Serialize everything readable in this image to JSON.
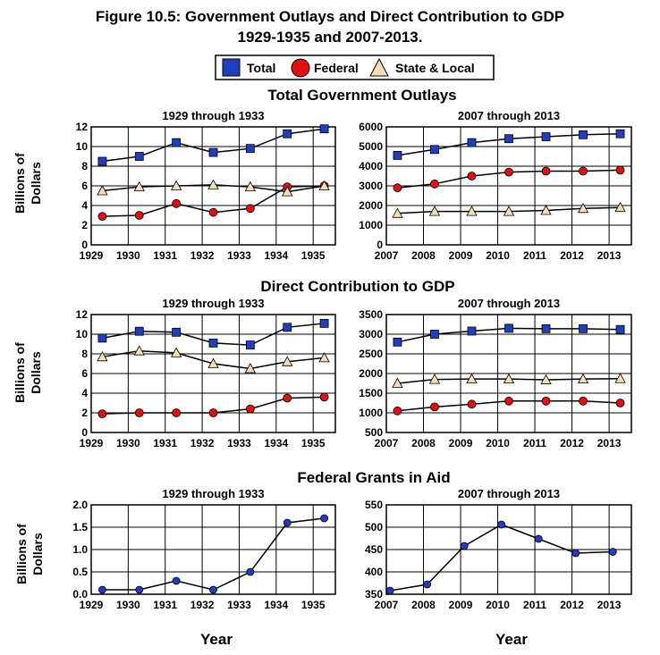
{
  "figure": {
    "title_line1": "Figure 10.5: Government Outlays and Direct Contribution to GDP",
    "title_line2": "1929-1935 and 2007-2013."
  },
  "legend": {
    "items": [
      {
        "label": "Total",
        "marker": "square",
        "color": "#1f3fbf"
      },
      {
        "label": "Federal",
        "marker": "circle",
        "color": "#e01010"
      },
      {
        "label": "State & Local",
        "marker": "triangle",
        "color": "#f5deb3"
      }
    ]
  },
  "sections": {
    "outlays": "Total Government Outlays",
    "gdp": "Direct Contribution to GDP",
    "grants": "Federal Grants in Aid"
  },
  "axis_labels": {
    "y_line1": "Billions of",
    "y_line2": "Dollars",
    "x": "Year"
  },
  "colors": {
    "total": "#1f3fbf",
    "federal": "#e01010",
    "state_local": "#f5deb3",
    "grants": "#1f3fbf"
  },
  "chart_data": [
    {
      "type": "line",
      "title": "1929 through 1933",
      "section": "Total Government Outlays",
      "x": [
        1929,
        1930,
        1931,
        1932,
        1933,
        1934,
        1935
      ],
      "xticks": [
        "1929",
        "1930",
        "1931",
        "1932",
        "1933",
        "1934",
        "1935"
      ],
      "xlim": [
        1929,
        1935.6
      ],
      "ylim": [
        0,
        12
      ],
      "yticks": [
        "0",
        "2",
        "4",
        "6",
        "8",
        "10",
        "12"
      ],
      "ylabel": "Billions of Dollars",
      "grid": true,
      "series": [
        {
          "name": "Total",
          "marker": "square",
          "x": [
            1929.3,
            1930.3,
            1931.3,
            1932.3,
            1933.3,
            1934.3,
            1935.3
          ],
          "values": [
            8.5,
            9.0,
            10.4,
            9.4,
            9.8,
            11.3,
            11.8
          ]
        },
        {
          "name": "Federal",
          "marker": "circle",
          "x": [
            1929.3,
            1930.3,
            1931.3,
            1932.3,
            1933.3,
            1934.3,
            1935.3
          ],
          "values": [
            2.9,
            3.0,
            4.2,
            3.3,
            3.7,
            5.9,
            6.0
          ]
        },
        {
          "name": "State & Local",
          "marker": "triangle",
          "x": [
            1929.3,
            1930.3,
            1931.3,
            1932.3,
            1933.3,
            1934.3,
            1935.3
          ],
          "values": [
            5.5,
            5.9,
            6.0,
            6.1,
            5.9,
            5.4,
            6.0
          ]
        }
      ]
    },
    {
      "type": "line",
      "title": "2007 through 2013",
      "section": "Total Government Outlays",
      "x": [
        2007,
        2008,
        2009,
        2010,
        2011,
        2012,
        2013
      ],
      "xticks": [
        "2007",
        "2008",
        "2009",
        "2010",
        "2011",
        "2012",
        "2013"
      ],
      "xlim": [
        2007,
        2013.6
      ],
      "ylim": [
        0,
        6000
      ],
      "yticks": [
        "0",
        "1000",
        "2000",
        "3000",
        "4000",
        "5000",
        "6000"
      ],
      "grid": true,
      "series": [
        {
          "name": "Total",
          "marker": "square",
          "x": [
            2007.3,
            2008.3,
            2009.3,
            2010.3,
            2011.3,
            2012.3,
            2013.3
          ],
          "values": [
            4550,
            4850,
            5200,
            5400,
            5500,
            5600,
            5650
          ]
        },
        {
          "name": "Federal",
          "marker": "circle",
          "x": [
            2007.3,
            2008.3,
            2009.3,
            2010.3,
            2011.3,
            2012.3,
            2013.3
          ],
          "values": [
            2900,
            3100,
            3500,
            3700,
            3750,
            3750,
            3800
          ]
        },
        {
          "name": "State & Local",
          "marker": "triangle",
          "x": [
            2007.3,
            2008.3,
            2009.3,
            2010.3,
            2011.3,
            2012.3,
            2013.3
          ],
          "values": [
            1600,
            1700,
            1700,
            1700,
            1750,
            1850,
            1900
          ]
        }
      ]
    },
    {
      "type": "line",
      "title": "1929 through 1933",
      "section": "Direct Contribution to GDP",
      "x": [
        1929,
        1930,
        1931,
        1932,
        1933,
        1934,
        1935
      ],
      "xticks": [
        "1929",
        "1930",
        "1931",
        "1932",
        "1933",
        "1934",
        "1935"
      ],
      "xlim": [
        1929,
        1935.6
      ],
      "ylim": [
        0,
        12
      ],
      "yticks": [
        "0",
        "2",
        "4",
        "6",
        "8",
        "10",
        "12"
      ],
      "ylabel": "Billions of Dollars",
      "grid": true,
      "series": [
        {
          "name": "Total",
          "marker": "square",
          "x": [
            1929.3,
            1930.3,
            1931.3,
            1932.3,
            1933.3,
            1934.3,
            1935.3
          ],
          "values": [
            9.6,
            10.3,
            10.2,
            9.1,
            8.9,
            10.7,
            11.1
          ]
        },
        {
          "name": "Federal",
          "marker": "circle",
          "x": [
            1929.3,
            1930.3,
            1931.3,
            1932.3,
            1933.3,
            1934.3,
            1935.3
          ],
          "values": [
            1.9,
            2.0,
            2.0,
            2.0,
            2.4,
            3.5,
            3.6
          ]
        },
        {
          "name": "State & Local",
          "marker": "triangle",
          "x": [
            1929.3,
            1930.3,
            1931.3,
            1932.3,
            1933.3,
            1934.3,
            1935.3
          ],
          "values": [
            7.7,
            8.3,
            8.1,
            7.0,
            6.5,
            7.2,
            7.6
          ]
        }
      ]
    },
    {
      "type": "line",
      "title": "2007 through 2013",
      "section": "Direct Contribution to GDP",
      "x": [
        2007,
        2008,
        2009,
        2010,
        2011,
        2012,
        2013
      ],
      "xticks": [
        "2007",
        "2008",
        "2009",
        "2010",
        "2011",
        "2012",
        "2013"
      ],
      "xlim": [
        2007,
        2013.6
      ],
      "ylim": [
        500,
        3500
      ],
      "yticks": [
        "500",
        "1000",
        "1500",
        "2000",
        "2500",
        "3000",
        "3500"
      ],
      "grid": true,
      "series": [
        {
          "name": "Total",
          "marker": "square",
          "x": [
            2007.3,
            2008.3,
            2009.3,
            2010.3,
            2011.3,
            2012.3,
            2013.3
          ],
          "values": [
            2800,
            3000,
            3080,
            3150,
            3140,
            3140,
            3120
          ]
        },
        {
          "name": "Federal",
          "marker": "circle",
          "x": [
            2007.3,
            2008.3,
            2009.3,
            2010.3,
            2011.3,
            2012.3,
            2013.3
          ],
          "values": [
            1050,
            1150,
            1220,
            1300,
            1300,
            1300,
            1250
          ]
        },
        {
          "name": "State & Local",
          "marker": "triangle",
          "x": [
            2007.3,
            2008.3,
            2009.3,
            2010.3,
            2011.3,
            2012.3,
            2013.3
          ],
          "values": [
            1750,
            1850,
            1860,
            1860,
            1840,
            1860,
            1870
          ]
        }
      ]
    },
    {
      "type": "line",
      "title": "1929 through 1933",
      "section": "Federal Grants in Aid",
      "x": [
        1929,
        1930,
        1931,
        1932,
        1933,
        1934,
        1935
      ],
      "xticks": [
        "1929",
        "1930",
        "1931",
        "1932",
        "1933",
        "1934",
        "1935"
      ],
      "xlim": [
        1929,
        1935.6
      ],
      "ylim": [
        0,
        2.0
      ],
      "yticks": [
        "0.0",
        "0.5",
        "1.0",
        "1.5",
        "2.0"
      ],
      "ylabel": "Billions of Dollars",
      "xlabel": "Year",
      "grid": true,
      "series": [
        {
          "marker": "circle",
          "x": [
            1929.3,
            1930.3,
            1931.3,
            1932.3,
            1933.3,
            1934.3,
            1935.3
          ],
          "values": [
            0.1,
            0.1,
            0.3,
            0.1,
            0.5,
            1.6,
            1.7
          ]
        }
      ]
    },
    {
      "type": "line",
      "title": "2007 through 2013",
      "section": "Federal Grants in Aid",
      "x": [
        2007,
        2008,
        2009,
        2010,
        2011,
        2012,
        2013
      ],
      "xticks": [
        "2007",
        "2008",
        "2009",
        "2010",
        "2011",
        "2012",
        "2013"
      ],
      "xlim": [
        2007,
        2013.6
      ],
      "ylim": [
        350,
        550
      ],
      "yticks": [
        "350",
        "400",
        "450",
        "500",
        "550"
      ],
      "xlabel": "Year",
      "grid": true,
      "series": [
        {
          "marker": "circle",
          "x": [
            2007.1,
            2008.1,
            2009.1,
            2010.1,
            2011.1,
            2012.1,
            2013.1
          ],
          "values": [
            358,
            372,
            458,
            506,
            474,
            442,
            445
          ]
        }
      ]
    }
  ]
}
